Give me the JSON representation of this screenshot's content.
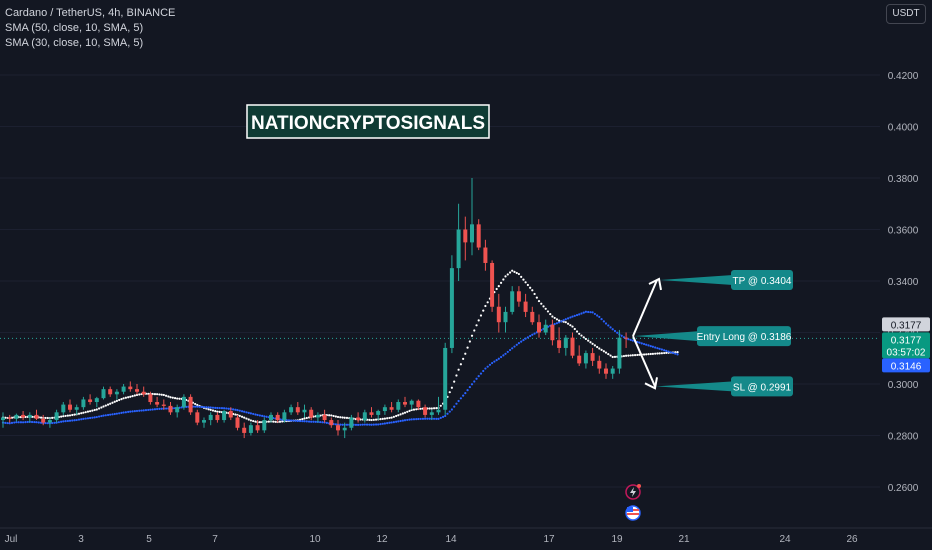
{
  "legend": {
    "symbol": "Cardano / TetherUS, 4h, BINANCE",
    "sma1": "SMA (50, close, 10, SMA, 5)",
    "sma2": "SMA (30, close, 10, SMA, 5)"
  },
  "currency_button": "USDT",
  "watermark": "NATIONCRYPTOSIGNALS",
  "colors": {
    "background": "#131722",
    "up": "#26a69a",
    "down": "#ef5350",
    "sma_white": "#ffffff",
    "sma_blue": "#2962ff",
    "callout": "#14898a",
    "price_badge_blue": "#2962ff",
    "price_badge_green": "#089981"
  },
  "chart_data": {
    "type": "candlestick",
    "y_ticks": [
      "0.2600",
      "0.2800",
      "0.3000",
      "0.3200",
      "0.3400",
      "0.3600",
      "0.3800",
      "0.4000",
      "0.4200"
    ],
    "x_ticks": [
      "Jul",
      "3",
      "5",
      "7",
      "10",
      "12",
      "14",
      "17",
      "19",
      "21",
      "24",
      "26"
    ],
    "ylim": [
      0.252,
      0.4335
    ],
    "current_price": {
      "value": "0.3177",
      "countdown": "03:57:02"
    },
    "last_label": "0.3177",
    "sma_value_label": "0.3146",
    "annotations": [
      {
        "text": "TP @ 0.3404",
        "price": 0.3404
      },
      {
        "text": "Entry Long @ 0.3186",
        "price": 0.3186
      },
      {
        "text": "SL @ 0.2991",
        "price": 0.2991
      }
    ],
    "candles": [
      [
        0.286,
        0.289,
        0.283,
        0.287
      ],
      [
        0.287,
        0.288,
        0.285,
        0.2865
      ],
      [
        0.2865,
        0.2885,
        0.2855,
        0.288
      ],
      [
        0.288,
        0.2895,
        0.286,
        0.287
      ],
      [
        0.287,
        0.289,
        0.285,
        0.288
      ],
      [
        0.288,
        0.29,
        0.286,
        0.2865
      ],
      [
        0.2865,
        0.288,
        0.284,
        0.285
      ],
      [
        0.285,
        0.287,
        0.283,
        0.286
      ],
      [
        0.286,
        0.29,
        0.285,
        0.289
      ],
      [
        0.289,
        0.293,
        0.288,
        0.292
      ],
      [
        0.292,
        0.294,
        0.289,
        0.29
      ],
      [
        0.29,
        0.292,
        0.288,
        0.291
      ],
      [
        0.291,
        0.295,
        0.29,
        0.294
      ],
      [
        0.294,
        0.296,
        0.292,
        0.293
      ],
      [
        0.293,
        0.295,
        0.291,
        0.2945
      ],
      [
        0.2945,
        0.299,
        0.294,
        0.298
      ],
      [
        0.298,
        0.299,
        0.295,
        0.296
      ],
      [
        0.296,
        0.298,
        0.294,
        0.297
      ],
      [
        0.297,
        0.3,
        0.296,
        0.299
      ],
      [
        0.299,
        0.301,
        0.297,
        0.298
      ],
      [
        0.298,
        0.3,
        0.296,
        0.297
      ],
      [
        0.297,
        0.299,
        0.295,
        0.296
      ],
      [
        0.296,
        0.297,
        0.292,
        0.293
      ],
      [
        0.293,
        0.295,
        0.291,
        0.292
      ],
      [
        0.292,
        0.294,
        0.29,
        0.2915
      ],
      [
        0.2915,
        0.293,
        0.288,
        0.289
      ],
      [
        0.289,
        0.292,
        0.287,
        0.291
      ],
      [
        0.291,
        0.296,
        0.29,
        0.295
      ],
      [
        0.295,
        0.296,
        0.288,
        0.289
      ],
      [
        0.289,
        0.29,
        0.284,
        0.285
      ],
      [
        0.285,
        0.287,
        0.283,
        0.286
      ],
      [
        0.286,
        0.289,
        0.284,
        0.288
      ],
      [
        0.288,
        0.289,
        0.285,
        0.286
      ],
      [
        0.286,
        0.29,
        0.285,
        0.2895
      ],
      [
        0.2895,
        0.291,
        0.286,
        0.287
      ],
      [
        0.287,
        0.288,
        0.282,
        0.283
      ],
      [
        0.283,
        0.285,
        0.279,
        0.281
      ],
      [
        0.281,
        0.285,
        0.28,
        0.284
      ],
      [
        0.284,
        0.286,
        0.281,
        0.282
      ],
      [
        0.282,
        0.287,
        0.281,
        0.286
      ],
      [
        0.286,
        0.289,
        0.285,
        0.288
      ],
      [
        0.288,
        0.289,
        0.285,
        0.286
      ],
      [
        0.286,
        0.29,
        0.285,
        0.289
      ],
      [
        0.289,
        0.292,
        0.288,
        0.291
      ],
      [
        0.291,
        0.293,
        0.288,
        0.289
      ],
      [
        0.289,
        0.292,
        0.287,
        0.29
      ],
      [
        0.29,
        0.291,
        0.286,
        0.287
      ],
      [
        0.287,
        0.289,
        0.285,
        0.288
      ],
      [
        0.288,
        0.29,
        0.285,
        0.286
      ],
      [
        0.286,
        0.287,
        0.283,
        0.284
      ],
      [
        0.284,
        0.286,
        0.28,
        0.282
      ],
      [
        0.282,
        0.285,
        0.279,
        0.283
      ],
      [
        0.283,
        0.288,
        0.282,
        0.287
      ],
      [
        0.287,
        0.289,
        0.285,
        0.286
      ],
      [
        0.286,
        0.29,
        0.285,
        0.289
      ],
      [
        0.289,
        0.291,
        0.287,
        0.288
      ],
      [
        0.288,
        0.29,
        0.286,
        0.2895
      ],
      [
        0.2895,
        0.292,
        0.288,
        0.291
      ],
      [
        0.291,
        0.293,
        0.289,
        0.29
      ],
      [
        0.29,
        0.294,
        0.289,
        0.293
      ],
      [
        0.293,
        0.295,
        0.291,
        0.292
      ],
      [
        0.292,
        0.294,
        0.29,
        0.2935
      ],
      [
        0.2935,
        0.294,
        0.29,
        0.291
      ],
      [
        0.291,
        0.292,
        0.287,
        0.288
      ],
      [
        0.288,
        0.29,
        0.286,
        0.289
      ],
      [
        0.289,
        0.295,
        0.288,
        0.29
      ],
      [
        0.29,
        0.316,
        0.288,
        0.314
      ],
      [
        0.314,
        0.35,
        0.312,
        0.345
      ],
      [
        0.345,
        0.37,
        0.34,
        0.36
      ],
      [
        0.36,
        0.365,
        0.348,
        0.355
      ],
      [
        0.355,
        0.38,
        0.35,
        0.362
      ],
      [
        0.362,
        0.364,
        0.352,
        0.353
      ],
      [
        0.353,
        0.356,
        0.344,
        0.347
      ],
      [
        0.347,
        0.348,
        0.328,
        0.33
      ],
      [
        0.33,
        0.335,
        0.32,
        0.324
      ],
      [
        0.324,
        0.33,
        0.32,
        0.328
      ],
      [
        0.328,
        0.338,
        0.327,
        0.336
      ],
      [
        0.336,
        0.338,
        0.33,
        0.332
      ],
      [
        0.332,
        0.335,
        0.326,
        0.328
      ],
      [
        0.328,
        0.33,
        0.323,
        0.324
      ],
      [
        0.324,
        0.327,
        0.318,
        0.32
      ],
      [
        0.32,
        0.325,
        0.319,
        0.323
      ],
      [
        0.323,
        0.325,
        0.315,
        0.317
      ],
      [
        0.317,
        0.322,
        0.312,
        0.314
      ],
      [
        0.314,
        0.319,
        0.311,
        0.318
      ],
      [
        0.318,
        0.32,
        0.31,
        0.311
      ],
      [
        0.311,
        0.315,
        0.307,
        0.308
      ],
      [
        0.308,
        0.313,
        0.306,
        0.312
      ],
      [
        0.312,
        0.314,
        0.307,
        0.309
      ],
      [
        0.309,
        0.311,
        0.304,
        0.306
      ],
      [
        0.306,
        0.308,
        0.302,
        0.304
      ],
      [
        0.304,
        0.307,
        0.302,
        0.306
      ],
      [
        0.306,
        0.321,
        0.304,
        0.318
      ],
      [
        0.318,
        0.32,
        0.314,
        0.3177
      ]
    ]
  }
}
